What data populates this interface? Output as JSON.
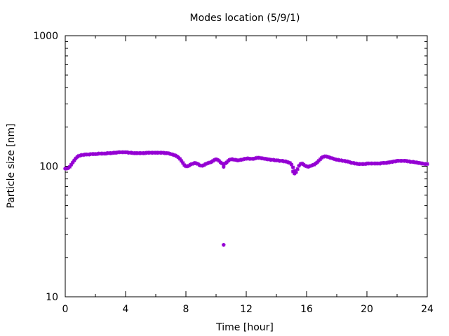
{
  "chart_data": {
    "type": "scatter",
    "title": "Modes location (5/9/1)",
    "xlabel": "Time [hour]",
    "ylabel": "Particle size [nm]",
    "xlim": [
      0,
      24
    ],
    "ylim": [
      10,
      1000
    ],
    "yscale": "log",
    "x_ticks": [
      0,
      4,
      8,
      12,
      16,
      20,
      24
    ],
    "y_ticks": [
      10,
      100,
      1000
    ],
    "x_tick_labels": [
      "0",
      "4",
      "8",
      "12",
      "16",
      "20",
      "24"
    ],
    "y_tick_labels": [
      "10",
      "100",
      "1000"
    ],
    "grid": false,
    "marker_color": "#9400d3",
    "series": [
      {
        "x": [
          0.0,
          0.1,
          0.2,
          0.3,
          0.4,
          0.5,
          0.6,
          0.7,
          0.8,
          0.9,
          1.0,
          1.1,
          1.2,
          1.3,
          1.4,
          1.5,
          1.6,
          1.7,
          1.8,
          1.9,
          2.0,
          2.1,
          2.2,
          2.3,
          2.4,
          2.5,
          2.6,
          2.7,
          2.8,
          2.9,
          3.0,
          3.1,
          3.2,
          3.3,
          3.4,
          3.5,
          3.6,
          3.7,
          3.8,
          3.9,
          4.0,
          4.1,
          4.2,
          4.3,
          4.4,
          4.5,
          4.6,
          4.7,
          4.8,
          4.9,
          5.0,
          5.1,
          5.2,
          5.3,
          5.4,
          5.5,
          5.6,
          5.7,
          5.8,
          5.9,
          6.0,
          6.1,
          6.2,
          6.3,
          6.4,
          6.5,
          6.6,
          6.7,
          6.8,
          6.9,
          7.0,
          7.1,
          7.2,
          7.3,
          7.4,
          7.5,
          7.6,
          7.7,
          7.8,
          7.9,
          8.0,
          8.1,
          8.2,
          8.3,
          8.4,
          8.5,
          8.6,
          8.7,
          8.8,
          8.9,
          9.0,
          9.1,
          9.2,
          9.3,
          9.4,
          9.5,
          9.6,
          9.7,
          9.8,
          9.9,
          10.0,
          10.1,
          10.2,
          10.3,
          10.4,
          10.5,
          10.6,
          10.7,
          10.8,
          10.9,
          11.0,
          11.1,
          11.2,
          11.3,
          11.4,
          11.5,
          11.6,
          11.7,
          11.8,
          11.9,
          12.0,
          12.1,
          12.2,
          12.3,
          12.4,
          12.5,
          12.6,
          12.7,
          12.8,
          12.9,
          13.0,
          13.1,
          13.2,
          13.3,
          13.4,
          13.5,
          13.6,
          13.7,
          13.8,
          13.9,
          14.0,
          14.1,
          14.2,
          14.3,
          14.4,
          14.5,
          14.6,
          14.7,
          14.8,
          14.9,
          15.0,
          15.1,
          15.2,
          15.3,
          15.4,
          15.5,
          15.6,
          15.7,
          15.8,
          15.9,
          16.0,
          16.1,
          16.2,
          16.3,
          16.4,
          16.5,
          16.6,
          16.7,
          16.8,
          16.9,
          17.0,
          17.1,
          17.2,
          17.3,
          17.4,
          17.5,
          17.6,
          17.7,
          17.8,
          17.9,
          18.0,
          18.1,
          18.2,
          18.3,
          18.4,
          18.5,
          18.6,
          18.7,
          18.8,
          18.9,
          19.0,
          19.1,
          19.2,
          19.3,
          19.4,
          19.5,
          19.6,
          19.7,
          19.8,
          19.9,
          20.0,
          20.1,
          20.2,
          20.3,
          20.4,
          20.5,
          20.6,
          20.7,
          20.8,
          20.9,
          21.0,
          21.1,
          21.2,
          21.3,
          21.4,
          21.5,
          21.6,
          21.7,
          21.8,
          21.9,
          22.0,
          22.1,
          22.2,
          22.3,
          22.4,
          22.5,
          22.6,
          22.7,
          22.8,
          22.9,
          23.0,
          23.1,
          23.2,
          23.3,
          23.4,
          23.5,
          23.6,
          23.7,
          23.8,
          23.9,
          24.0,
          10.5,
          10.5,
          15.2,
          15.1
        ],
        "y": [
          96,
          96,
          97,
          99,
          103,
          107,
          111,
          115,
          118,
          120,
          121,
          122,
          122,
          123,
          123,
          123,
          123,
          124,
          124,
          124,
          124,
          124,
          125,
          125,
          125,
          125,
          125,
          125,
          126,
          126,
          126,
          126,
          127,
          127,
          127,
          128,
          128,
          128,
          128,
          128,
          128,
          128,
          127,
          127,
          127,
          126,
          126,
          126,
          126,
          126,
          126,
          126,
          126,
          126,
          127,
          127,
          127,
          127,
          127,
          127,
          127,
          127,
          127,
          127,
          127,
          127,
          126,
          126,
          126,
          125,
          124,
          123,
          122,
          121,
          119,
          117,
          114,
          110,
          106,
          102,
          100,
          100,
          101,
          103,
          104,
          105,
          106,
          105,
          104,
          102,
          101,
          101,
          102,
          104,
          105,
          106,
          107,
          108,
          110,
          112,
          113,
          112,
          110,
          107,
          105,
          104,
          105,
          107,
          110,
          112,
          113,
          113,
          112,
          112,
          111,
          111,
          112,
          112,
          113,
          114,
          114,
          115,
          114,
          114,
          114,
          114,
          115,
          116,
          116,
          116,
          115,
          115,
          114,
          114,
          113,
          113,
          112,
          112,
          112,
          111,
          111,
          111,
          110,
          110,
          110,
          109,
          109,
          108,
          107,
          106,
          103,
          98,
          92,
          90,
          95,
          101,
          104,
          105,
          103,
          101,
          100,
          99,
          100,
          101,
          102,
          103,
          105,
          107,
          110,
          113,
          116,
          118,
          119,
          119,
          118,
          117,
          116,
          115,
          114,
          113,
          112,
          112,
          111,
          111,
          110,
          110,
          109,
          109,
          108,
          107,
          106,
          106,
          105,
          105,
          104,
          104,
          104,
          104,
          104,
          104,
          105,
          105,
          105,
          105,
          105,
          105,
          105,
          105,
          105,
          105,
          106,
          106,
          106,
          106,
          107,
          107,
          108,
          108,
          109,
          109,
          110,
          110,
          110,
          110,
          110,
          110,
          110,
          109,
          109,
          108,
          108,
          108,
          107,
          107,
          106,
          106,
          105,
          105,
          104,
          104,
          104,
          99,
          25,
          88,
          91
        ]
      }
    ]
  }
}
